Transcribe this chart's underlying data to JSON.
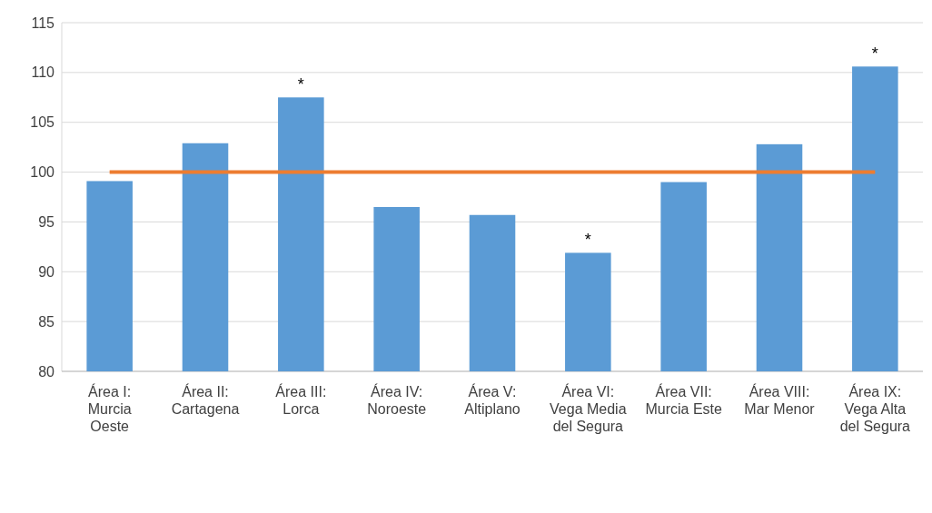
{
  "chart_data": {
    "type": "bar",
    "categories": [
      "Área I:\nMurcia\nOeste",
      "Área II:\nCartagena",
      "Área III:\nLorca",
      "Área IV:\nNoroeste",
      "Área V:\nAltiplano",
      "Área VI:\nVega Media\ndel Segura",
      "Área VII:\nMurcia Este",
      "Área VIII:\nMar Menor",
      "Área IX:\nVega Alta\ndel Segura"
    ],
    "values": [
      99.1,
      102.9,
      107.5,
      96.5,
      95.7,
      91.9,
      99.0,
      102.8,
      110.6
    ],
    "color": "#5b9bd5",
    "ylim": [
      80,
      115
    ],
    "yticks": [
      80,
      85,
      90,
      95,
      100,
      105,
      110,
      115
    ],
    "grid": "y",
    "ref_lines": [
      {
        "axis": "y",
        "value": 100,
        "color": "#ed7d31"
      }
    ],
    "annotations": [
      {
        "text": "*",
        "x": "Área III:\nLorca",
        "y": 107.5
      },
      {
        "text": "*",
        "x": "Área VI:\nVega Media\ndel Segura",
        "y": 91.9
      },
      {
        "text": "*",
        "x": "Área IX:\nVega Alta\ndel Segura",
        "y": 110.6
      }
    ]
  }
}
